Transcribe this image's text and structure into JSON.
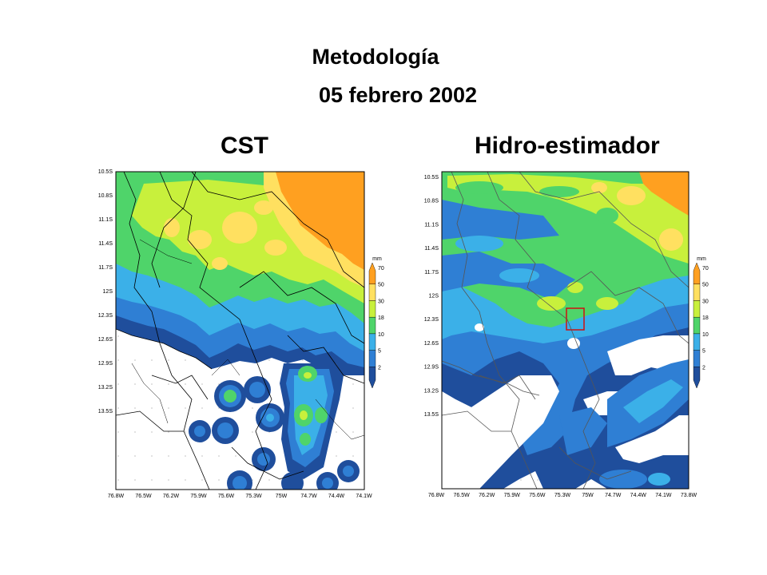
{
  "header": {
    "title": "Metodología",
    "date": "05 febrero 2002"
  },
  "colors": {
    "levels": [
      "#ffffff",
      "#1f4e9c",
      "#2f7fd4",
      "#3bb0e8",
      "#4fd46a",
      "#c8f03c",
      "#ffe060",
      "#ffa020"
    ],
    "border": "#000000",
    "grid": "#9a9a9a"
  },
  "colorbar": {
    "unit": "mm",
    "levels": [
      "2",
      "5",
      "10",
      "18",
      "30",
      "50",
      "70"
    ]
  },
  "panels": [
    {
      "id": "cst",
      "title": "CST",
      "lat_labels": [
        "10.5S",
        "10.8S",
        "11.1S",
        "11.4S",
        "11.7S",
        "12S",
        "12.3S",
        "12.6S",
        "12.9S",
        "13.2S",
        "13.5S"
      ],
      "lon_labels": [
        "76.8W",
        "76.5W",
        "76.2W",
        "75.9W",
        "75.6W",
        "75.3W",
        "75W",
        "74.7W",
        "74.4W",
        "74.1W"
      ]
    },
    {
      "id": "hidro",
      "title": "Hidro-estimador",
      "lat_labels": [
        "10.5S",
        "10.8S",
        "11.1S",
        "11.4S",
        "11.7S",
        "12S",
        "12.3S",
        "12.6S",
        "12.9S",
        "13.2S",
        "13.5S"
      ],
      "lon_labels": [
        "76.8W",
        "76.5W",
        "76.2W",
        "75.9W",
        "75.6W",
        "75.3W",
        "75W",
        "74.7W",
        "74.4W",
        "74.1W",
        "73.8W"
      ]
    }
  ]
}
